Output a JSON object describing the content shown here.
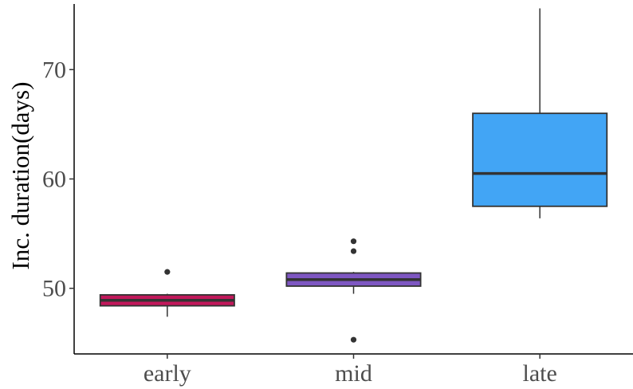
{
  "chart_data": {
    "type": "boxplot",
    "title": "",
    "xlabel": "",
    "ylabel": "Inc. duration(days)",
    "ylim": [
      44,
      76
    ],
    "yticks": [
      50,
      60,
      70
    ],
    "grid": false,
    "legend": "none",
    "categories": [
      "early",
      "mid",
      "late"
    ],
    "boxes": [
      {
        "category": "early",
        "fill": "#c2185b",
        "whisker_low": 47.4,
        "q1": 48.4,
        "median": 48.9,
        "q3": 49.4,
        "whisker_high": 49.5,
        "outliers": [
          51.5
        ]
      },
      {
        "category": "mid",
        "fill": "#7e57c2",
        "whisker_low": 49.5,
        "q1": 50.2,
        "median": 50.8,
        "q3": 51.4,
        "whisker_high": 51.5,
        "outliers": [
          53.4,
          54.3,
          45.3
        ]
      },
      {
        "category": "late",
        "fill": "#42a5f5",
        "whisker_low": 56.4,
        "q1": 57.5,
        "median": 60.5,
        "q3": 66.0,
        "whisker_high": 75.6,
        "outliers": []
      }
    ]
  }
}
